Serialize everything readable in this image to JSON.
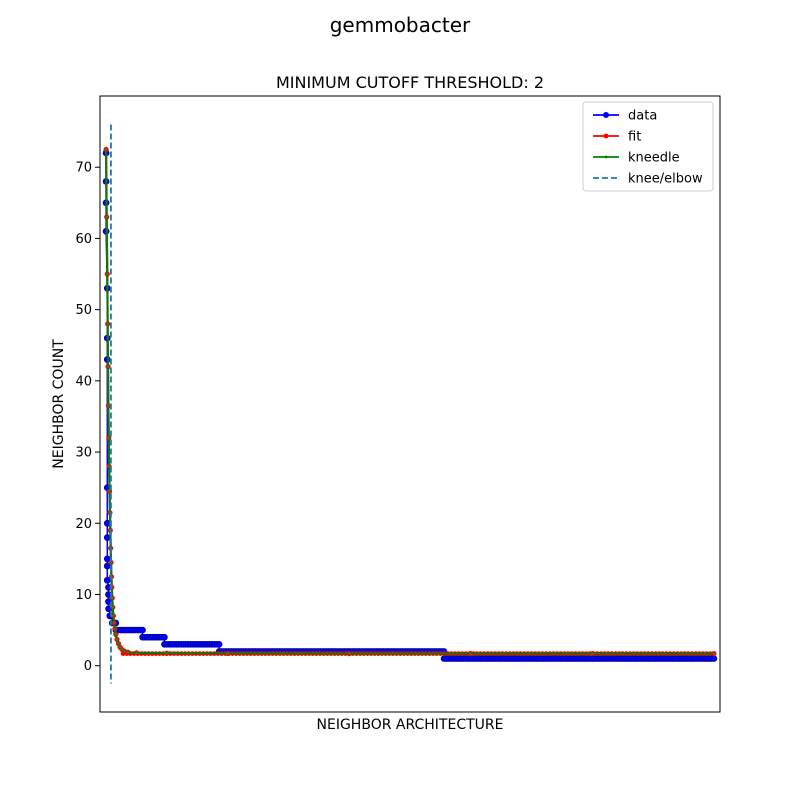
{
  "chart_data": {
    "type": "line",
    "suptitle": "gemmobacter",
    "title": "MINIMUM CUTOFF THRESHOLD: 2",
    "xlabel": "NEIGHBOR ARCHITECTURE",
    "ylabel": "NEIGHBOR COUNT",
    "xlim": [
      -5,
      505
    ],
    "ylim": [
      -6.5,
      80
    ],
    "y_ticks": [
      0,
      10,
      20,
      30,
      40,
      50,
      60,
      70
    ],
    "x_ticks_shown": false,
    "grid": false,
    "legend_position": "top-right",
    "series": [
      {
        "name": "data",
        "color": "#0000ff",
        "marker": "circle",
        "steps": [
          {
            "x0": 0,
            "x1": 0,
            "y": 72
          },
          {
            "x0": 0,
            "x1": 0,
            "y": 68
          },
          {
            "x0": 0,
            "x1": 0,
            "y": 65
          },
          {
            "x0": 0,
            "x1": 0,
            "y": 61
          },
          {
            "x0": 1,
            "x1": 1,
            "y": 53
          },
          {
            "x0": 1,
            "x1": 1,
            "y": 46
          },
          {
            "x0": 1,
            "x1": 1,
            "y": 43
          },
          {
            "x0": 1,
            "x1": 1,
            "y": 25
          },
          {
            "x0": 1,
            "x1": 1,
            "y": 20
          },
          {
            "x0": 1,
            "x1": 1,
            "y": 18
          },
          {
            "x0": 1,
            "x1": 1,
            "y": 15
          },
          {
            "x0": 1,
            "x1": 1,
            "y": 14
          },
          {
            "x0": 1,
            "x1": 1,
            "y": 12
          },
          {
            "x0": 2,
            "x1": 2,
            "y": 11
          },
          {
            "x0": 2,
            "x1": 2,
            "y": 10
          },
          {
            "x0": 2,
            "x1": 2,
            "y": 9
          },
          {
            "x0": 2,
            "x1": 3,
            "y": 8
          },
          {
            "x0": 3,
            "x1": 5,
            "y": 7
          },
          {
            "x0": 5,
            "x1": 8,
            "y": 6
          },
          {
            "x0": 8,
            "x1": 30,
            "y": 5
          },
          {
            "x0": 30,
            "x1": 48,
            "y": 4
          },
          {
            "x0": 48,
            "x1": 93,
            "y": 3
          },
          {
            "x0": 93,
            "x1": 278,
            "y": 2
          },
          {
            "x0": 278,
            "x1": 500,
            "y": 1
          }
        ]
      },
      {
        "name": "fit",
        "color": "#ff0000",
        "marker": "point",
        "points": [
          [
            0,
            72.5
          ],
          [
            0.5,
            63
          ],
          [
            1,
            55
          ],
          [
            1.3,
            48
          ],
          [
            1.6,
            42
          ],
          [
            1.9,
            36.5
          ],
          [
            2.2,
            32
          ],
          [
            2.5,
            28
          ],
          [
            2.9,
            24.5
          ],
          [
            3.2,
            21.5
          ],
          [
            3.5,
            19
          ],
          [
            3.8,
            16.5
          ],
          [
            4.1,
            14.5
          ],
          [
            4.4,
            12.5
          ],
          [
            4.7,
            11
          ],
          [
            5.1,
            9.5
          ],
          [
            5.5,
            8.2
          ],
          [
            6,
            7
          ],
          [
            6.6,
            6
          ],
          [
            7.3,
            5.2
          ],
          [
            8,
            4.4
          ],
          [
            9,
            3.7
          ],
          [
            10.2,
            3.1
          ],
          [
            11.5,
            2.6
          ],
          [
            13,
            2.3
          ],
          [
            15,
            2.05
          ],
          [
            18,
            1.9
          ],
          [
            25,
            1.8
          ],
          [
            50,
            1.75
          ],
          [
            100,
            1.72
          ],
          [
            200,
            1.7
          ],
          [
            300,
            1.7
          ],
          [
            400,
            1.7
          ],
          [
            500,
            1.7
          ]
        ]
      },
      {
        "name": "kneedle",
        "color": "#008000",
        "marker": "small point",
        "points": [
          [
            0,
            72.5
          ],
          [
            0.5,
            63
          ],
          [
            1,
            55
          ],
          [
            1.3,
            48
          ],
          [
            1.6,
            42
          ],
          [
            1.9,
            36.5
          ],
          [
            2.2,
            32
          ],
          [
            2.5,
            28
          ],
          [
            2.9,
            24.5
          ],
          [
            3.2,
            21.5
          ],
          [
            3.5,
            19
          ],
          [
            3.8,
            16.5
          ],
          [
            4.1,
            14.5
          ],
          [
            4.4,
            12.5
          ],
          [
            4.7,
            11
          ],
          [
            5.1,
            9.5
          ],
          [
            5.5,
            8.2
          ],
          [
            6,
            7
          ],
          [
            6.6,
            6
          ],
          [
            7.3,
            5.2
          ],
          [
            8,
            4.4
          ],
          [
            9,
            3.7
          ],
          [
            10.2,
            3.1
          ],
          [
            11.5,
            2.6
          ],
          [
            13,
            2.3
          ],
          [
            15,
            2.05
          ],
          [
            18,
            1.9
          ],
          [
            25,
            1.8
          ],
          [
            50,
            1.75
          ],
          [
            100,
            1.72
          ],
          [
            200,
            1.7
          ],
          [
            300,
            1.7
          ],
          [
            400,
            1.7
          ],
          [
            500,
            1.7
          ]
        ]
      },
      {
        "name": "knee/elbow",
        "color": "#1f77b4",
        "style": "dashed vertical line",
        "x": 4,
        "ymin": -2.5,
        "ymax": 76
      }
    ]
  }
}
